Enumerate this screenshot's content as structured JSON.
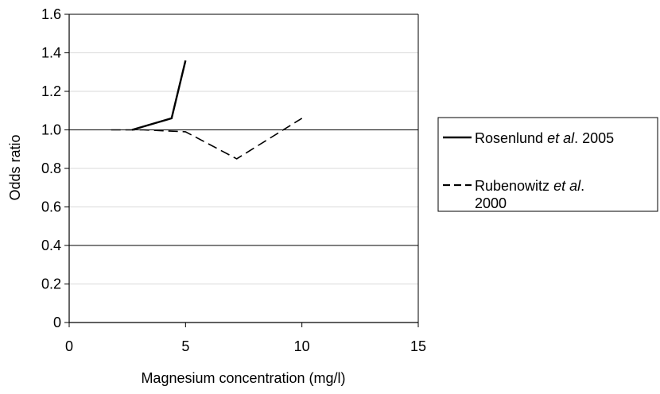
{
  "chart_data": {
    "type": "line",
    "xlabel": "Magnesium concentration (mg/l)",
    "ylabel": "Odds ratio",
    "xlim": [
      0,
      15
    ],
    "ylim": [
      0,
      1.6
    ],
    "x_ticks": [
      "0",
      "5",
      "10",
      "15"
    ],
    "y_ticks": [
      "0",
      "0.2",
      "0.4",
      "0.6",
      "0.8",
      "1.0",
      "1.2",
      "1.4",
      "1.6"
    ],
    "x_tick_values": [
      0,
      5,
      10,
      15
    ],
    "y_tick_values": [
      0,
      0.2,
      0.4,
      0.6,
      0.8,
      1.0,
      1.2,
      1.4,
      1.6
    ],
    "grid": "horizontal",
    "reference_lines": [
      1.0,
      0.4
    ],
    "legend_position": "right",
    "series": [
      {
        "label_parts": [
          {
            "text": "Rosenlund ",
            "italic": false
          },
          {
            "text": "et al",
            "italic": true
          },
          {
            "text": ". 2005",
            "italic": false
          }
        ],
        "style": "solid",
        "color": "#000000",
        "points": [
          [
            2.7,
            1.0
          ],
          [
            4.4,
            1.06
          ],
          [
            5.0,
            1.36
          ]
        ]
      },
      {
        "label_parts": [
          {
            "text": "Rubenowitz ",
            "italic": false
          },
          {
            "text": "et al",
            "italic": true
          },
          {
            "text": ".",
            "italic": false
          },
          {
            "text": "2000",
            "italic": false,
            "newline": true
          }
        ],
        "style": "dashed",
        "color": "#000000",
        "points": [
          [
            1.8,
            1.0
          ],
          [
            3.2,
            1.0
          ],
          [
            5.0,
            0.99
          ],
          [
            7.2,
            0.85
          ],
          [
            10.0,
            1.06
          ]
        ]
      }
    ]
  }
}
